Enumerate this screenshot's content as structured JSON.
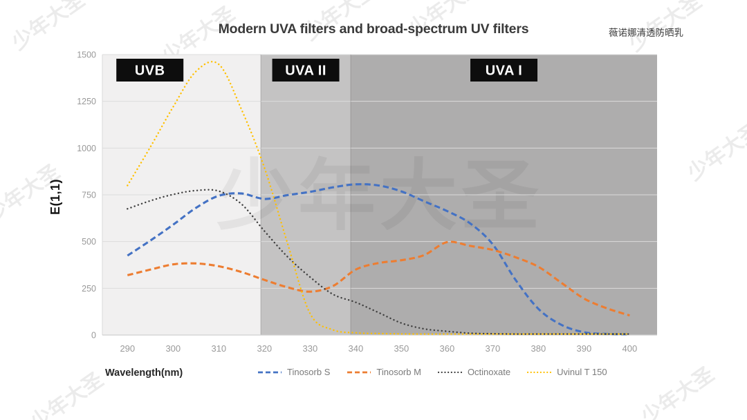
{
  "header": {
    "brand": "薇诺娜清透防晒乳"
  },
  "watermarks": {
    "text": "少年大圣"
  },
  "chart_data": {
    "type": "line",
    "title": "Modern UVA filters and broad-spectrum UV filters",
    "xlabel": "Wavelength(nm)",
    "ylabel": "E(1,1)",
    "xlim": [
      284.5,
      406
    ],
    "ylim": [
      0,
      1500
    ],
    "x_ticks": [
      290,
      300,
      310,
      320,
      330,
      340,
      350,
      360,
      370,
      380,
      390,
      400
    ],
    "y_ticks": [
      0,
      250,
      500,
      750,
      1000,
      1250,
      1500
    ],
    "grid": "horizontal-only",
    "legend_position": "bottom",
    "regions": [
      {
        "label": "UVB",
        "from": 284.5,
        "to": 319.2,
        "color": "#f1f0f0"
      },
      {
        "label": "UVA II",
        "from": 319.2,
        "to": 338.9,
        "color": "#c4c3c3"
      },
      {
        "label": "UVA I",
        "from": 338.9,
        "to": 406.0,
        "color": "#aeadad"
      }
    ],
    "x": [
      290,
      295,
      300,
      305,
      310,
      315,
      320,
      325,
      330,
      335,
      340,
      345,
      350,
      355,
      360,
      365,
      370,
      375,
      380,
      385,
      390,
      395,
      400
    ],
    "series": [
      {
        "name": "Tinosorb S",
        "color": "#4472c4",
        "style": "dashed",
        "values": [
          425,
          505,
          590,
          680,
          745,
          757,
          728,
          748,
          766,
          790,
          806,
          800,
          768,
          715,
          663,
          598,
          485,
          295,
          140,
          55,
          15,
          6,
          4
        ]
      },
      {
        "name": "Tinosorb M",
        "color": "#ed7d31",
        "style": "dashed",
        "values": [
          320,
          350,
          378,
          383,
          368,
          337,
          295,
          256,
          232,
          262,
          350,
          385,
          400,
          428,
          497,
          477,
          455,
          416,
          365,
          280,
          195,
          143,
          105
        ]
      },
      {
        "name": "Octinoxate",
        "color": "#3f3f3f",
        "style": "dotted",
        "values": [
          675,
          718,
          752,
          773,
          770,
          700,
          556,
          420,
          310,
          218,
          175,
          120,
          64,
          33,
          20,
          10,
          7,
          5,
          5,
          5,
          5,
          5,
          5
        ]
      },
      {
        "name": "Uvinul T 150",
        "color": "#ffc000",
        "style": "dotted",
        "values": [
          800,
          1005,
          1220,
          1410,
          1448,
          1205,
          895,
          495,
          115,
          28,
          12,
          8,
          6,
          5,
          5,
          5,
          5,
          5,
          5,
          5,
          5,
          5,
          5
        ]
      }
    ]
  }
}
